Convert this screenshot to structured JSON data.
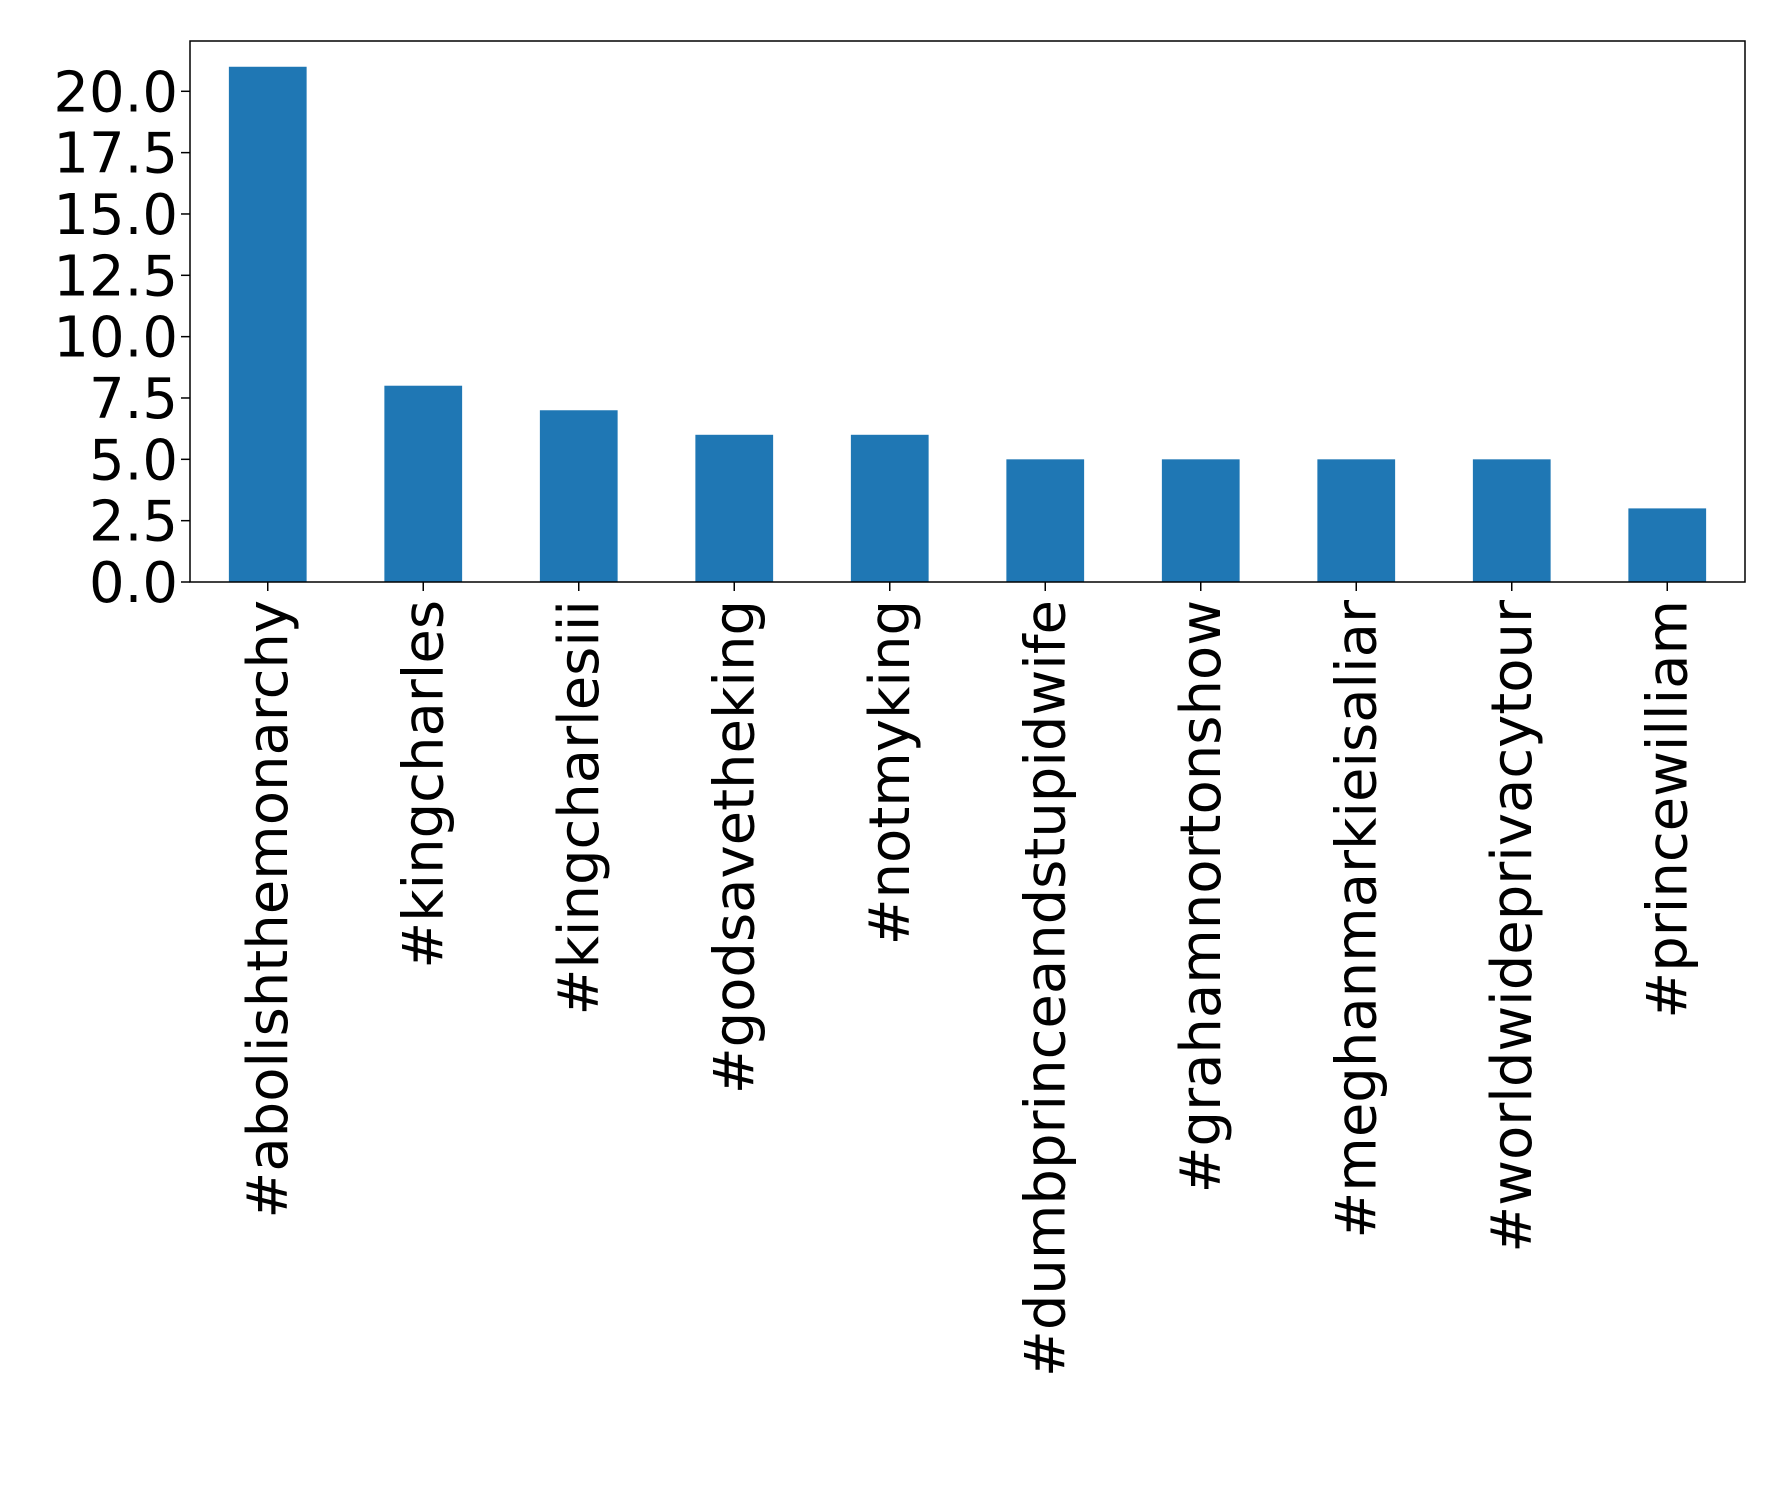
{
  "chart_data": {
    "type": "bar",
    "title": "",
    "xlabel": "",
    "ylabel": "",
    "categories": [
      "#abolishthemonarchy",
      "#kingcharles",
      "#kingcharlesiii",
      "#godsavetheking",
      "#notmyking",
      "#dumbprinceandstupidwife",
      "#grahamnortonshow",
      "#meghanmarkieisaliar",
      "#worldwideprivacytour",
      "#princewilliam"
    ],
    "values": [
      21,
      8,
      7,
      6,
      6,
      5,
      5,
      5,
      5,
      3
    ],
    "ylim": [
      0,
      22.05
    ],
    "yticks": [
      0,
      2.5,
      5,
      7.5,
      10,
      12.5,
      15,
      17.5,
      20
    ],
    "ytick_labels": [
      "0.0",
      "2.5",
      "5.0",
      "7.5",
      "10.0",
      "12.5",
      "15.0",
      "17.5",
      "20.0"
    ],
    "bar_color": "#1f77b4",
    "grid": false,
    "legend": "none"
  }
}
